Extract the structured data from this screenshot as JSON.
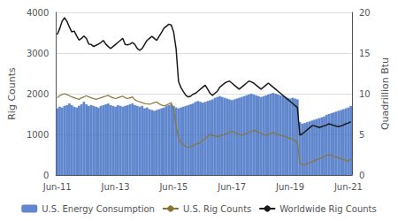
{
  "chart_data": {
    "type": "bar",
    "ylabel": "Rig Counts",
    "y2label": "Quadrillion Btu",
    "ylim": [
      0,
      4000
    ],
    "yticks": [
      0,
      1000,
      2000,
      3000,
      4000
    ],
    "y2lim": [
      0,
      20
    ],
    "y2ticks": [
      0,
      5,
      10,
      15,
      20
    ],
    "grid": true,
    "legend": "bottom",
    "categories": [
      "Jun-11",
      null,
      null,
      null,
      null,
      null,
      null,
      null,
      null,
      null,
      null,
      null,
      null,
      null,
      null,
      null,
      null,
      null,
      null,
      null,
      null,
      null,
      null,
      null,
      "Jun-13",
      null,
      null,
      null,
      null,
      null,
      null,
      null,
      null,
      null,
      null,
      null,
      null,
      null,
      null,
      null,
      null,
      null,
      null,
      null,
      null,
      null,
      null,
      null,
      "Jun-15",
      null,
      null,
      null,
      null,
      null,
      null,
      null,
      null,
      null,
      null,
      null,
      null,
      null,
      null,
      null,
      null,
      null,
      null,
      null,
      null,
      null,
      null,
      null,
      "Jun-17",
      null,
      null,
      null,
      null,
      null,
      null,
      null,
      null,
      null,
      null,
      null,
      null,
      null,
      null,
      null,
      null,
      null,
      null,
      null,
      null,
      null,
      null,
      null,
      "Jun-19",
      null,
      null,
      null,
      null,
      null,
      null,
      null,
      null,
      null,
      null,
      null,
      null,
      null,
      null,
      null,
      null,
      null,
      null,
      null,
      null,
      null,
      null,
      null,
      "Jun-21",
      null
    ],
    "series": [
      {
        "name": "U.S. Energy Consumption",
        "type": "bar",
        "axis": "y2",
        "color": "#4472c4",
        "values": [
          8.2,
          8.4,
          8.3,
          8.5,
          8.6,
          8.8,
          8.6,
          8.4,
          8.3,
          8.5,
          8.7,
          9.0,
          8.7,
          8.5,
          8.6,
          8.5,
          8.4,
          8.3,
          8.5,
          8.6,
          8.7,
          8.8,
          8.6,
          8.5,
          8.4,
          8.6,
          8.5,
          8.4,
          8.5,
          8.6,
          8.7,
          8.8,
          8.6,
          8.5,
          8.4,
          8.5,
          8.2,
          8.3,
          8.1,
          8.0,
          7.9,
          8.0,
          8.1,
          8.2,
          8.3,
          8.5,
          8.6,
          8.7,
          8.5,
          8.3,
          8.2,
          8.3,
          8.4,
          8.5,
          8.6,
          8.7,
          8.8,
          9.0,
          9.1,
          9.0,
          8.9,
          9.0,
          9.1,
          9.2,
          9.3,
          9.5,
          9.6,
          9.7,
          9.6,
          9.5,
          9.4,
          9.3,
          9.2,
          9.3,
          9.4,
          9.5,
          9.6,
          9.7,
          9.8,
          9.9,
          10.0,
          9.9,
          9.8,
          9.7,
          9.6,
          9.7,
          9.8,
          9.9,
          10.0,
          10.1,
          10.0,
          9.9,
          9.8,
          9.7,
          9.6,
          9.5,
          9.4,
          9.5,
          9.4,
          9.3,
          6.5,
          6.3,
          6.4,
          6.5,
          6.6,
          6.7,
          6.8,
          6.9,
          7.0,
          7.1,
          7.2,
          7.4,
          7.5,
          7.6,
          7.7,
          7.8,
          7.9,
          8.0,
          8.1,
          8.2,
          8.3,
          8.5
        ]
      },
      {
        "name": "U.S. Rig Counts",
        "type": "line",
        "color": "#8B7536",
        "values": [
          1900,
          1950,
          1980,
          2000,
          1980,
          1950,
          1920,
          1900,
          1880,
          1860,
          1900,
          1920,
          1950,
          1920,
          1900,
          1880,
          1860,
          1880,
          1900,
          1920,
          1940,
          1960,
          1920,
          1900,
          1880,
          1900,
          1920,
          1940,
          1900,
          1880,
          1900,
          1920,
          1850,
          1820,
          1800,
          1780,
          1760,
          1750,
          1740,
          1760,
          1780,
          1800,
          1750,
          1720,
          1700,
          1720,
          1750,
          1780,
          1600,
          1200,
          900,
          800,
          750,
          700,
          680,
          700,
          720,
          750,
          780,
          800,
          850,
          900,
          950,
          1000,
          980,
          960,
          940,
          960,
          980,
          1000,
          1020,
          1050,
          1080,
          1050,
          1020,
          1000,
          980,
          1000,
          1020,
          1050,
          1080,
          1100,
          1080,
          1050,
          1020,
          1000,
          980,
          1000,
          1020,
          1050,
          1020,
          1000,
          980,
          960,
          940,
          920,
          900,
          880,
          850,
          800,
          300,
          250,
          250,
          280,
          300,
          320,
          350,
          380,
          400,
          420,
          450,
          480,
          500,
          480,
          460,
          440,
          420,
          400,
          380,
          360,
          340,
          400
        ]
      },
      {
        "name": "Worldwide Rig Counts",
        "type": "line",
        "color": "#1a1a1a",
        "values": [
          3450,
          3600,
          3780,
          3870,
          3780,
          3640,
          3520,
          3540,
          3420,
          3320,
          3360,
          3420,
          3360,
          3220,
          3210,
          3160,
          3190,
          3220,
          3260,
          3310,
          3220,
          3160,
          3110,
          3160,
          3210,
          3260,
          3310,
          3360,
          3210,
          3200,
          3220,
          3260,
          3210,
          3110,
          3070,
          3110,
          3210,
          3310,
          3360,
          3410,
          3360,
          3310,
          3410,
          3510,
          3610,
          3660,
          3710,
          3690,
          3510,
          3100,
          2300,
          2150,
          2050,
          1960,
          1920,
          1940,
          1990,
          2010,
          2060,
          2110,
          2160,
          2210,
          2110,
          2010,
          1960,
          2010,
          2060,
          2160,
          2210,
          2260,
          2290,
          2310,
          2260,
          2210,
          2160,
          2110,
          2160,
          2210,
          2260,
          2310,
          2290,
          2260,
          2210,
          2160,
          2110,
          2160,
          2210,
          2260,
          2210,
          2160,
          2110,
          2060,
          2010,
          1960,
          1910,
          1860,
          1810,
          1760,
          1710,
          1660,
          980,
          1010,
          1060,
          1110,
          1160,
          1210,
          1210,
          1190,
          1170,
          1190,
          1210,
          1230,
          1260,
          1240,
          1220,
          1200,
          1190,
          1210,
          1230,
          1260,
          1280,
          1310
        ]
      }
    ]
  }
}
